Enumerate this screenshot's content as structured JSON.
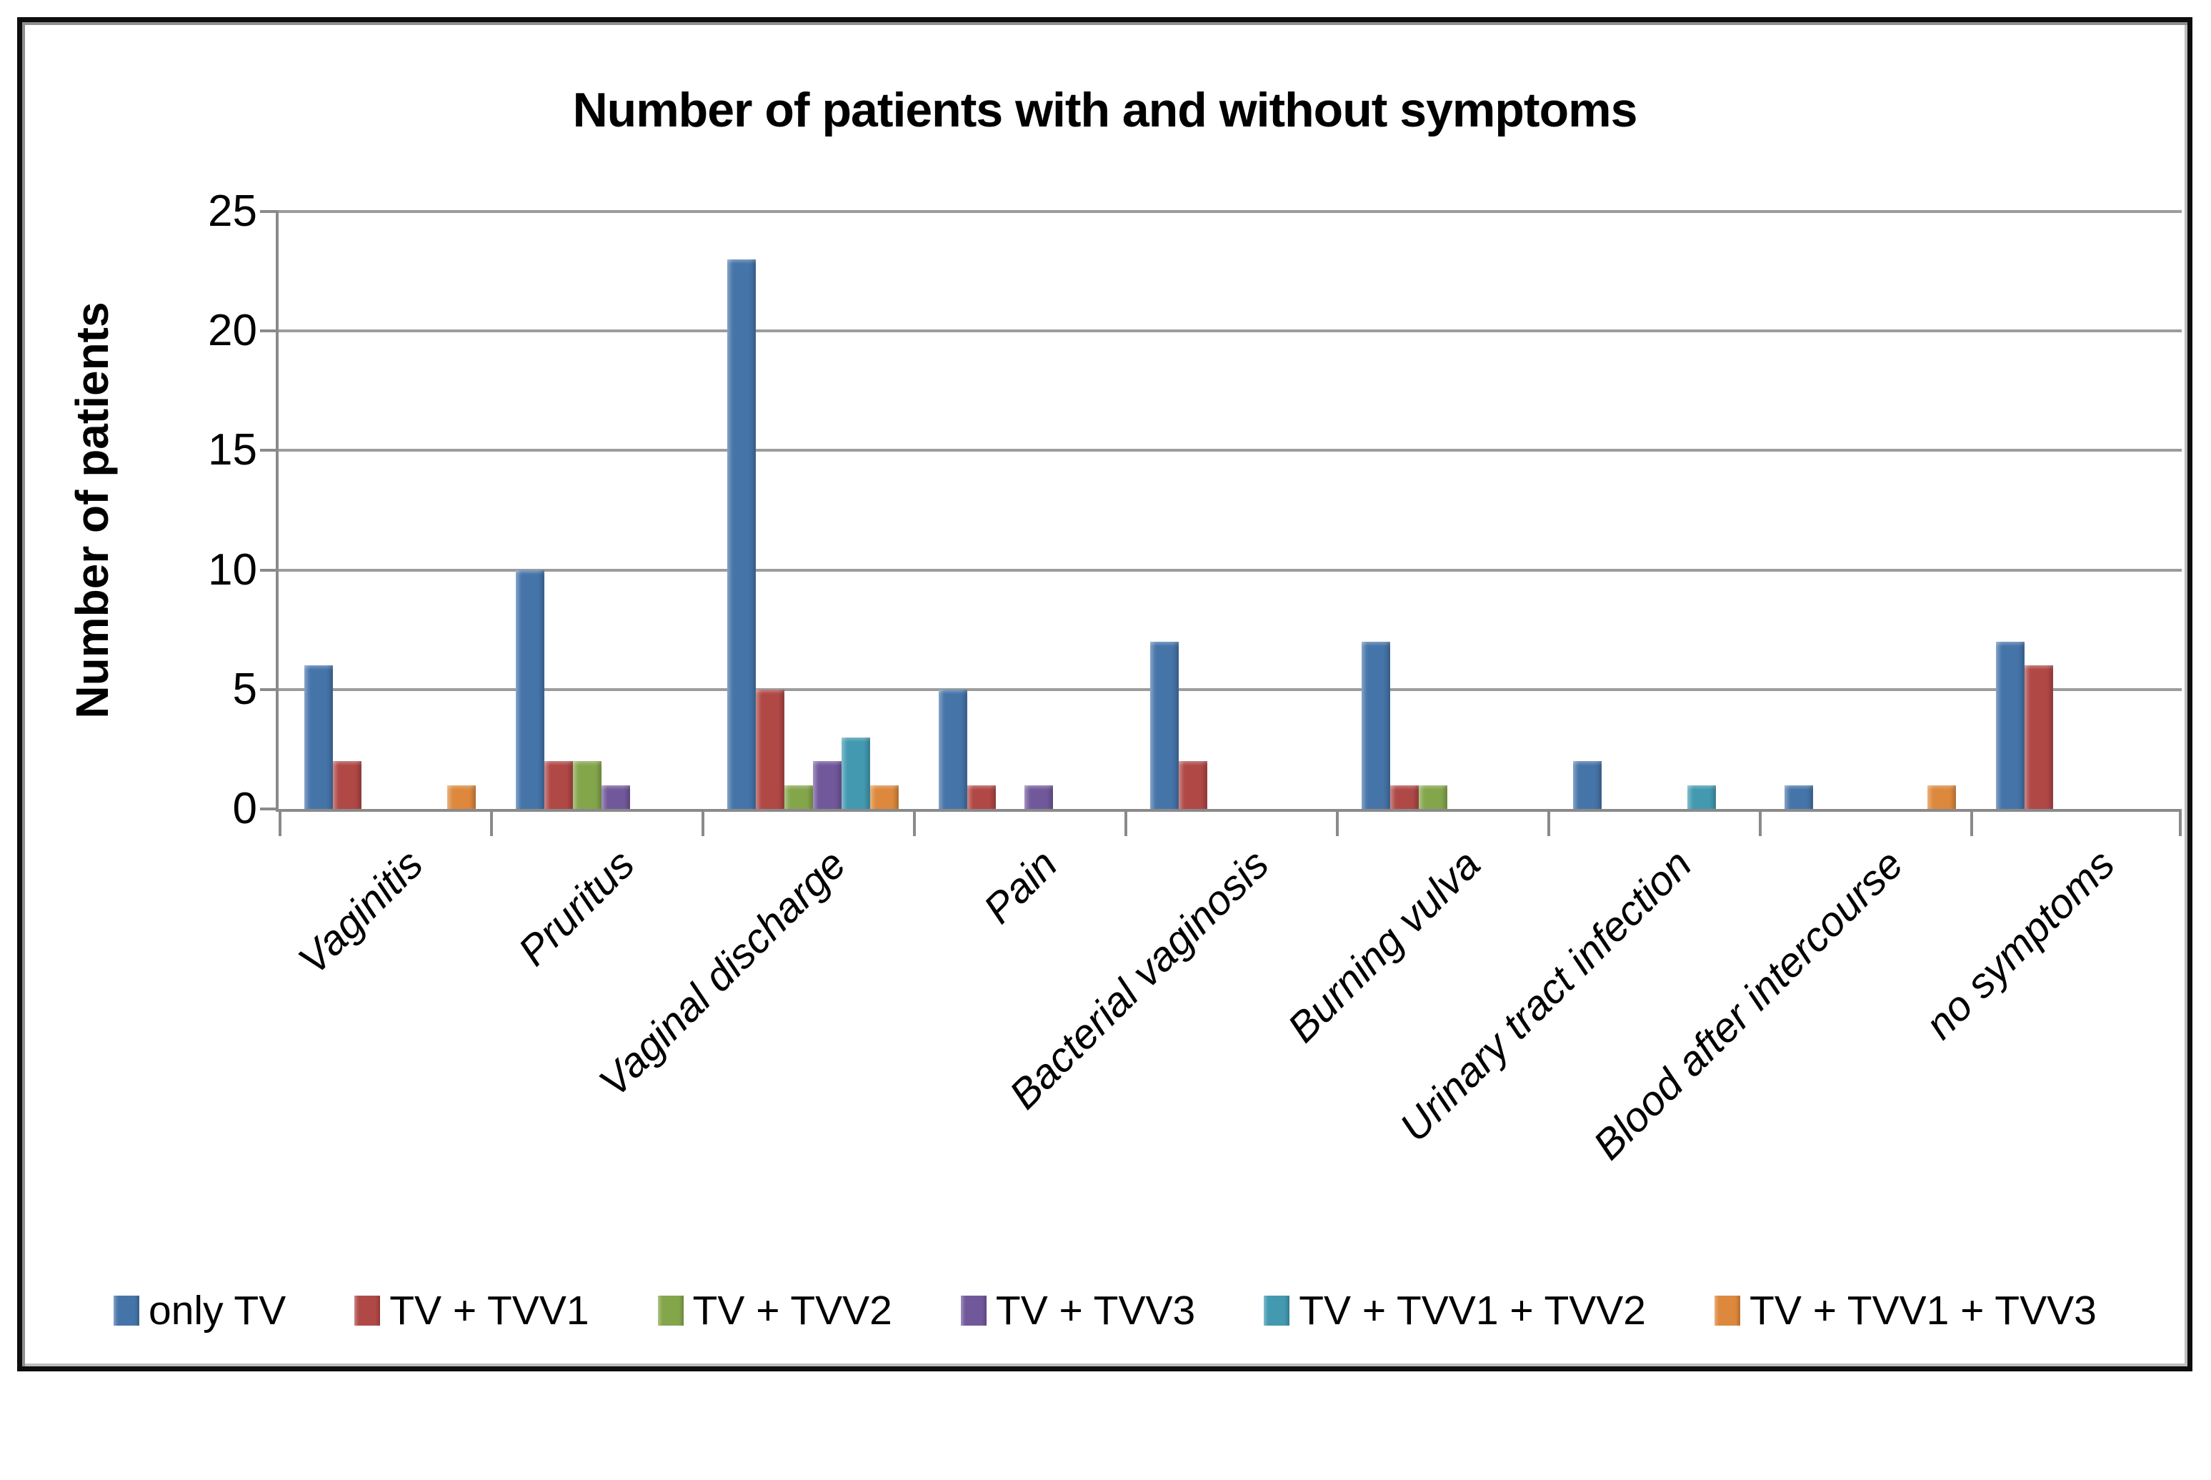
{
  "chart_data": {
    "type": "bar",
    "title": "Number of patients with and without symptoms",
    "xlabel": "",
    "ylabel": "Number of patients",
    "categories": [
      "Vaginitis",
      "Pruritus",
      "Vaginal discharge",
      "Pain",
      "Bacterial vaginosis",
      "Burning vulva",
      "Urinary tract infection",
      "Blood after intercourse",
      "no symptoms"
    ],
    "series": [
      {
        "name": "only TV",
        "color": "#4574A9",
        "values": [
          6,
          10,
          23,
          5,
          7,
          7,
          2,
          1,
          7
        ]
      },
      {
        "name": "TV + TVV1",
        "color": "#B04846",
        "values": [
          2,
          2,
          5,
          1,
          2,
          1,
          0,
          0,
          6
        ]
      },
      {
        "name": "TV + TVV2",
        "color": "#84A64B",
        "values": [
          0,
          2,
          1,
          0,
          0,
          1,
          0,
          0,
          0
        ]
      },
      {
        "name": "TV + TVV3",
        "color": "#71589B",
        "values": [
          0,
          1,
          2,
          1,
          0,
          0,
          0,
          0,
          0
        ]
      },
      {
        "name": "TV + TVV1 + TVV2",
        "color": "#4299B0",
        "values": [
          0,
          0,
          3,
          0,
          0,
          0,
          1,
          0,
          0
        ]
      },
      {
        "name": "TV + TVV1 + TVV3",
        "color": "#DD883C",
        "values": [
          1,
          0,
          1,
          0,
          0,
          0,
          0,
          1,
          0
        ]
      }
    ],
    "ylim": [
      0,
      25
    ],
    "yticks": [
      0,
      5,
      10,
      15,
      20,
      25
    ],
    "grid": true,
    "gridline_color": "#9c9c9c",
    "axis_color": "#8a8a8a",
    "legend_position": "bottom"
  }
}
